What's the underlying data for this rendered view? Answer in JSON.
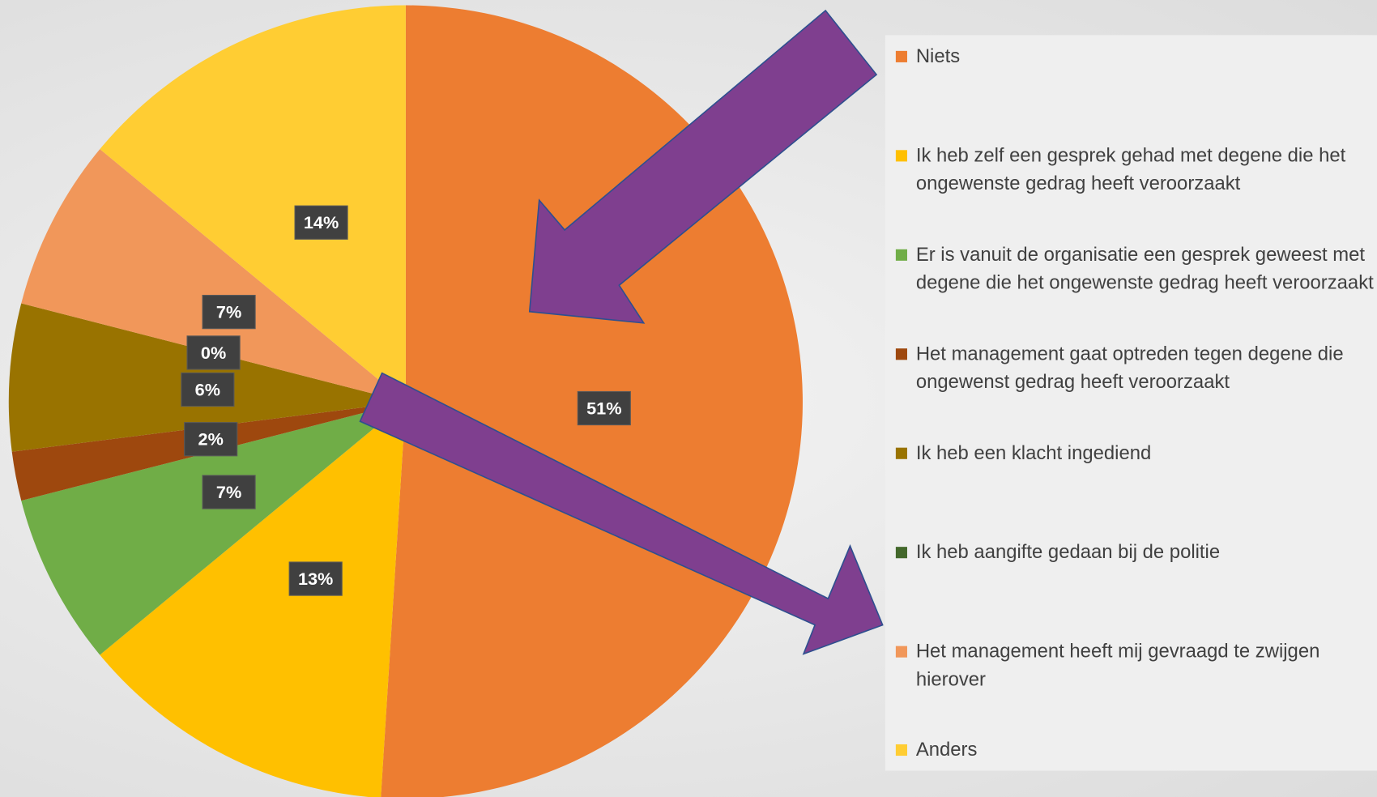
{
  "chart_data": {
    "type": "pie",
    "categories": [
      "Niets",
      "Ik heb zelf een gesprek gehad met degene die het ongewenste gedrag heeft veroorzaakt",
      "Er is vanuit de organisatie een gesprek geweest met degene die het ongewenste gedrag heeft veroorzaakt",
      "Het management gaat optreden tegen degene die ongewenst gedrag heeft veroorzaakt",
      "Ik heb een klacht ingediend",
      "Ik heb aangifte gedaan bij de politie",
      "Het management heeft mij gevraagd te zwijgen hierover",
      "Anders"
    ],
    "values": [
      51,
      13,
      7,
      2,
      6,
      0,
      7,
      14
    ],
    "value_labels": [
      "51%",
      "13%",
      "7%",
      "2%",
      "6%",
      "0%",
      "7%",
      "14%"
    ],
    "colors": [
      "#ED7D31",
      "#FFC000",
      "#70AD47",
      "#9E480E",
      "#997300",
      "#43682B",
      "#F1975A",
      "#FFCD33"
    ],
    "legend": "right"
  }
}
